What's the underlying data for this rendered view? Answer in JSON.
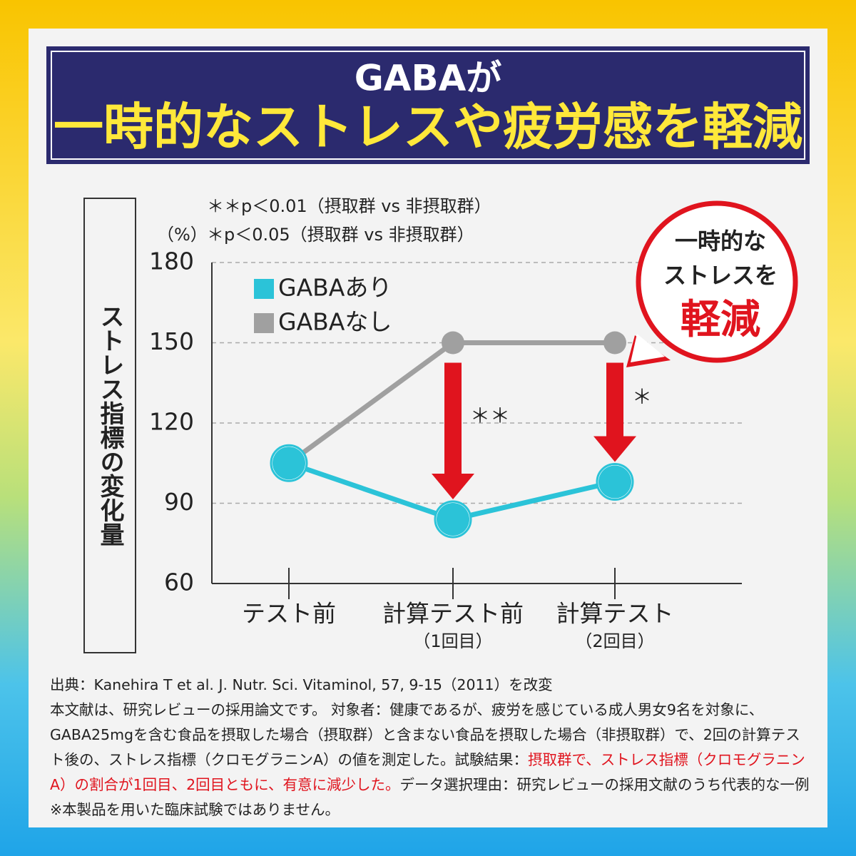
{
  "header": {
    "title_line1": "GABAが",
    "title_line2": "一時的なストレスや疲労感を軽減"
  },
  "chart_data": {
    "type": "line",
    "notes": [
      "＊＊p＜0.01（摂取群 vs 非摂取群）",
      "＊p＜0.05（摂取群 vs 非摂取群）"
    ],
    "y_unit": "（%）",
    "y_label": "ストレス指標の変化量",
    "categories": [
      "テスト前",
      "計算テスト前",
      "計算テスト"
    ],
    "category_sublabels": [
      null,
      "（1回目）",
      "（2回目）"
    ],
    "series": [
      {
        "name": "GABAあり",
        "color": "#2bc3d8",
        "values": [
          105,
          84,
          98
        ]
      },
      {
        "name": "GABAなし",
        "color": "#a0a0a0",
        "values": [
          105,
          150,
          150
        ]
      }
    ],
    "significance": [
      null,
      "＊＊",
      "＊"
    ],
    "ylim": [
      60,
      180
    ],
    "yticks": [
      60,
      90,
      120,
      150,
      180
    ],
    "grid": true
  },
  "callout": {
    "line1": "一時的な",
    "line2": "ストレスを",
    "line3": "軽減"
  },
  "footer": {
    "source": "出典：Kanehira T et al. J. Nutr. Sci. Vitaminol, 57, 9-15（2011）を改変",
    "body_before": "本文献は、研究レビューの採用論文です。 対象者：健康であるが、疲労を感じている成人男女9名を対象に、GABA25mgを含む食品を摂取した場合（摂取群）と含まない食品を摂取した場合（非摂取群）で、2回の計算テスト後の、ストレス指標（クロモグラニンA）の値を測定した。試験結果：",
    "body_highlight": "摂取群で、ストレス指標（クロモグラニンA）の割合が1回目、2回目ともに、有意に減少した。",
    "body_after": "データ選択理由：研究レビューの採用文献のうち代表的な一例　※本製品を用いた臨床試験ではありません。"
  }
}
